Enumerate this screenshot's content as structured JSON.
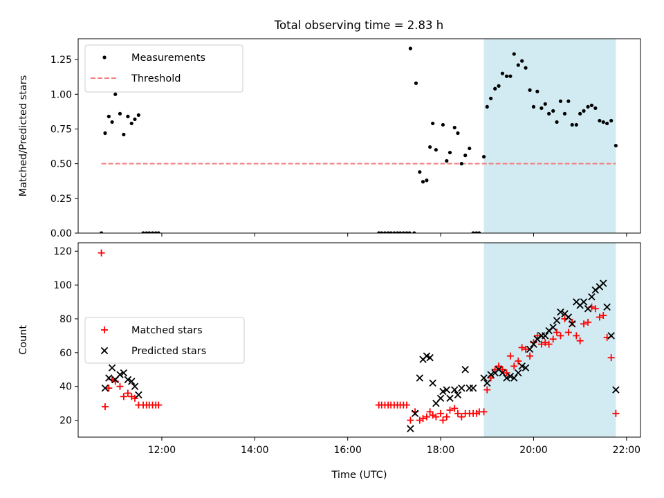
{
  "figure_title": "Total observing time = 2.83 h",
  "chart_data": [
    {
      "type": "scatter",
      "title": "Total observing time = 2.83 h",
      "xlabel": "",
      "ylabel": "Matched/Predicted stars",
      "xlim": [
        10.2,
        22.3
      ],
      "ylim": [
        0,
        1.4
      ],
      "yticks": [
        "0.00",
        "0.25",
        "0.50",
        "0.75",
        "1.00",
        "1.25"
      ],
      "shaded_interval": [
        18.93,
        21.77
      ],
      "shade_color": "#add8e6",
      "legend": {
        "placement": "upper-left",
        "entries": [
          "Measurements",
          "Threshold"
        ]
      },
      "threshold": {
        "name": "Threshold",
        "y": 0.5,
        "x": [
          10.7,
          21.77
        ],
        "color": "#f08080",
        "style": "dashed"
      },
      "series": [
        {
          "name": "Measurements",
          "color": "#000000",
          "marker": "dot",
          "x": [
            10.7,
            10.78,
            10.86,
            10.93,
            11.0,
            11.1,
            11.18,
            11.27,
            11.35,
            11.42,
            11.5,
            11.6,
            11.67,
            11.73,
            11.8,
            11.87,
            11.93,
            16.67,
            16.73,
            16.8,
            16.87,
            16.93,
            17.0,
            17.07,
            17.13,
            17.2,
            17.27,
            17.33,
            17.35,
            17.43,
            17.47,
            17.55,
            17.62,
            17.7,
            17.77,
            17.83,
            17.9,
            18.05,
            18.13,
            18.2,
            18.3,
            18.37,
            18.45,
            18.53,
            18.62,
            18.7,
            18.77,
            18.83,
            18.93,
            19.0,
            19.08,
            19.17,
            19.25,
            19.33,
            19.42,
            19.5,
            19.58,
            19.67,
            19.75,
            19.83,
            19.92,
            20.0,
            20.08,
            20.17,
            20.25,
            20.33,
            20.42,
            20.5,
            20.58,
            20.67,
            20.75,
            20.83,
            20.92,
            21.0,
            21.08,
            21.17,
            21.25,
            21.33,
            21.42,
            21.5,
            21.58,
            21.67,
            21.77
          ],
          "y": [
            0.0,
            0.72,
            0.84,
            0.8,
            1.0,
            0.86,
            0.71,
            0.84,
            0.79,
            0.82,
            0.85,
            0.0,
            0.0,
            0.0,
            0.0,
            0.0,
            0.0,
            0.0,
            0.0,
            0.0,
            0.0,
            0.0,
            0.0,
            0.0,
            0.0,
            0.0,
            0.0,
            0.0,
            1.33,
            0.0,
            1.08,
            0.44,
            0.37,
            0.38,
            0.62,
            0.79,
            0.6,
            0.78,
            0.52,
            0.58,
            0.76,
            0.72,
            0.5,
            0.56,
            0.61,
            0.0,
            0.0,
            0.0,
            0.55,
            0.91,
            0.97,
            1.04,
            1.06,
            1.15,
            1.13,
            1.13,
            1.29,
            1.21,
            1.24,
            1.19,
            1.03,
            0.91,
            1.02,
            0.9,
            0.93,
            0.86,
            0.88,
            0.8,
            0.95,
            0.86,
            0.95,
            0.78,
            0.78,
            0.86,
            0.88,
            0.91,
            0.92,
            0.9,
            0.81,
            0.8,
            0.79,
            0.81,
            0.63
          ]
        }
      ]
    },
    {
      "type": "scatter",
      "title": "",
      "xlabel": "Time (UTC)",
      "ylabel": "Count",
      "xlim": [
        10.2,
        22.3
      ],
      "ylim": [
        10,
        125
      ],
      "yticks": [
        "20",
        "40",
        "60",
        "80",
        "100",
        "120"
      ],
      "xticks": [
        {
          "value": 12,
          "label": "12:00"
        },
        {
          "value": 14,
          "label": "14:00"
        },
        {
          "value": 16,
          "label": "16:00"
        },
        {
          "value": 18,
          "label": "18:00"
        },
        {
          "value": 20,
          "label": "20:00"
        },
        {
          "value": 22,
          "label": "22:00"
        }
      ],
      "shaded_interval": [
        18.93,
        21.77
      ],
      "shade_color": "#add8e6",
      "legend": {
        "placement": "center-left",
        "entries": [
          "Matched stars",
          "Predicted stars"
        ]
      },
      "series": [
        {
          "name": "Matched stars",
          "color": "#ff0000",
          "marker": "plus",
          "x": [
            10.7,
            10.78,
            10.86,
            10.93,
            11.0,
            11.1,
            11.18,
            11.27,
            11.35,
            11.42,
            11.5,
            11.6,
            11.67,
            11.73,
            11.8,
            11.87,
            11.93,
            16.67,
            16.73,
            16.8,
            16.87,
            16.93,
            17.0,
            17.07,
            17.13,
            17.2,
            17.27,
            17.35,
            17.45,
            17.55,
            17.62,
            17.7,
            17.77,
            17.83,
            17.9,
            18.0,
            18.05,
            18.13,
            18.2,
            18.3,
            18.37,
            18.45,
            18.53,
            18.62,
            18.7,
            18.77,
            18.83,
            18.93,
            19.0,
            19.08,
            19.17,
            19.25,
            19.33,
            19.42,
            19.5,
            19.58,
            19.67,
            19.75,
            19.83,
            19.92,
            20.0,
            20.08,
            20.17,
            20.25,
            20.33,
            20.42,
            20.5,
            20.58,
            20.67,
            20.75,
            20.83,
            20.92,
            21.0,
            21.08,
            21.17,
            21.25,
            21.33,
            21.42,
            21.5,
            21.58,
            21.67,
            21.77
          ],
          "y": [
            119,
            28,
            39,
            44,
            43,
            40,
            34,
            36,
            34,
            33,
            29,
            29,
            29,
            29,
            29,
            29,
            29,
            29,
            29,
            29,
            29,
            29,
            29,
            29,
            29,
            29,
            29,
            20,
            25,
            20,
            21,
            22,
            25,
            23,
            22,
            24,
            20,
            22,
            26,
            27,
            24,
            22,
            24,
            24,
            24,
            24,
            25,
            25,
            38,
            45,
            50,
            52,
            50,
            48,
            58,
            52,
            55,
            63,
            62,
            58,
            66,
            70,
            65,
            66,
            65,
            68,
            72,
            70,
            80,
            72,
            78,
            70,
            67,
            77,
            78,
            87,
            86,
            81,
            82,
            69,
            57,
            24
          ]
        },
        {
          "name": "Predicted stars",
          "color": "#000000",
          "marker": "x",
          "x": [
            10.78,
            10.86,
            10.93,
            11.0,
            11.1,
            11.18,
            11.27,
            11.35,
            11.42,
            11.5,
            17.35,
            17.45,
            17.55,
            17.62,
            17.7,
            17.77,
            17.83,
            17.9,
            18.0,
            18.05,
            18.13,
            18.2,
            18.3,
            18.37,
            18.45,
            18.53,
            18.62,
            18.7,
            18.93,
            19.0,
            19.08,
            19.17,
            19.25,
            19.33,
            19.42,
            19.5,
            19.58,
            19.67,
            19.75,
            19.83,
            19.92,
            20.0,
            20.08,
            20.17,
            20.25,
            20.33,
            20.42,
            20.5,
            20.58,
            20.67,
            20.75,
            20.83,
            20.92,
            21.0,
            21.08,
            21.17,
            21.25,
            21.33,
            21.42,
            21.5,
            21.58,
            21.67,
            21.77
          ],
          "y": [
            39,
            45,
            51,
            44,
            47,
            48,
            44,
            43,
            40,
            35,
            15,
            24,
            45,
            56,
            58,
            57,
            42,
            30,
            33,
            37,
            38,
            33,
            38,
            35,
            39,
            50,
            39,
            39,
            45,
            42,
            47,
            48,
            50,
            48,
            45,
            46,
            45,
            48,
            52,
            51,
            62,
            65,
            68,
            70,
            70,
            73,
            75,
            79,
            84,
            83,
            81,
            77,
            90,
            88,
            90,
            86,
            93,
            97,
            99,
            101,
            87,
            70,
            38
          ]
        }
      ]
    }
  ]
}
